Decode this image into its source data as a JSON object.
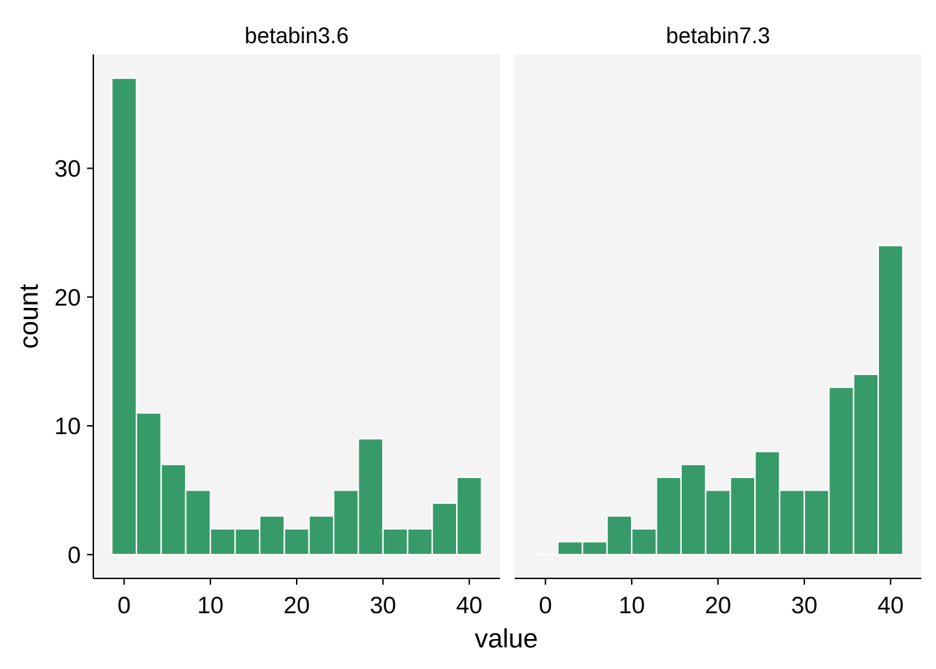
{
  "chart_data": {
    "type": "bar",
    "facets": [
      {
        "title": "betabin3.6",
        "bins_start": [
          -1.43,
          1.43,
          4.29,
          7.14,
          10.0,
          12.86,
          15.71,
          18.57,
          21.43,
          24.29,
          27.14,
          30.0,
          32.86,
          35.71,
          38.57
        ],
        "bin_width": 2.857,
        "values": [
          37,
          11,
          7,
          5,
          2,
          2,
          3,
          2,
          3,
          5,
          9,
          2,
          2,
          4,
          6
        ]
      },
      {
        "title": "betabin7.3",
        "bins_start": [
          -1.43,
          1.43,
          4.29,
          7.14,
          10.0,
          12.86,
          15.71,
          18.57,
          21.43,
          24.29,
          27.14,
          30.0,
          32.86,
          35.71,
          38.57
        ],
        "bin_width": 2.857,
        "values": [
          0,
          1,
          1,
          3,
          2,
          6,
          7,
          5,
          6,
          8,
          5,
          5,
          13,
          14,
          24
        ]
      }
    ],
    "xlabel": "value",
    "ylabel": "count",
    "xlim": [
      -3.57,
      43.57
    ],
    "ylim": [
      -1.85,
      38.85
    ],
    "x_ticks": [
      0,
      10,
      20,
      30,
      40
    ],
    "y_ticks": [
      0,
      10,
      20,
      30
    ],
    "x_tick_labels": [
      "0",
      "10",
      "20",
      "30",
      "40"
    ],
    "y_tick_labels": [
      "0",
      "10",
      "20",
      "30"
    ],
    "grid": false,
    "bar_color": "#369b69",
    "bar_outline_color": "#ffffff",
    "panel_background": "#f4f4f4"
  }
}
